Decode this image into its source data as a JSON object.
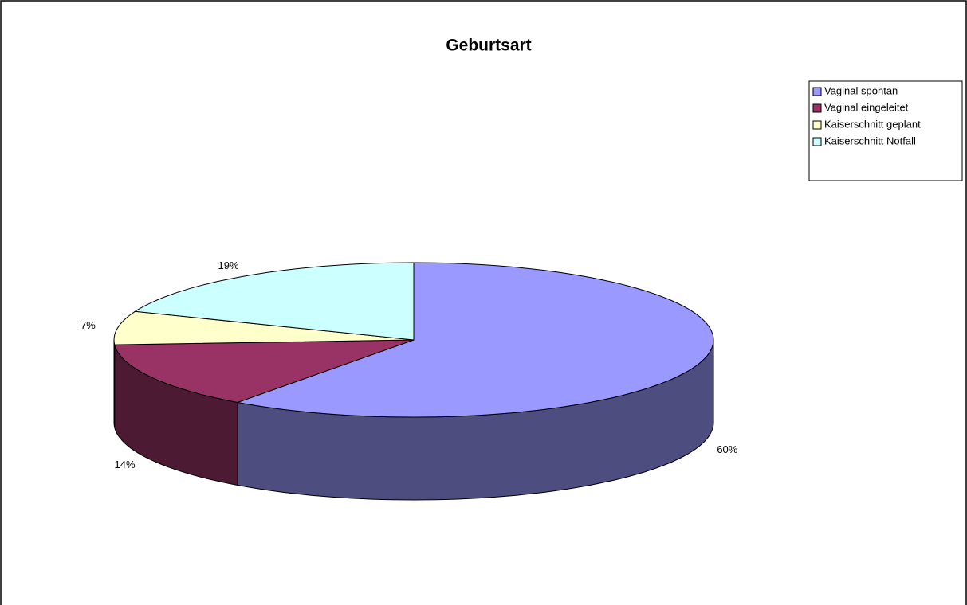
{
  "chart_data": {
    "type": "pie",
    "title": "Geburtsart",
    "categories": [
      "Vaginal spontan",
      "Vaginal eingeleitet",
      "Kaiserschnitt geplant",
      "Kaiserschnitt Notfall"
    ],
    "values": [
      60,
      14,
      7,
      19
    ],
    "value_labels": [
      "60%",
      "14%",
      "7%",
      "19%"
    ],
    "colors": [
      "#9999ff",
      "#993366",
      "#ffffcc",
      "#ccffff"
    ],
    "legend": "top-right"
  }
}
